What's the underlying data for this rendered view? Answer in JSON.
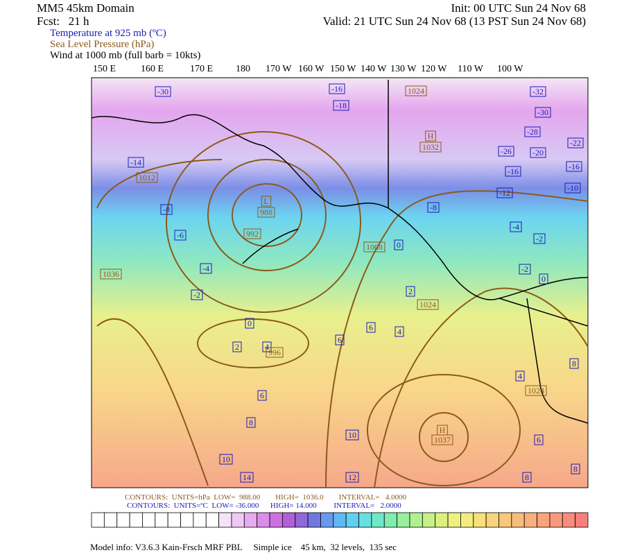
{
  "header": {
    "domain": "MM5 45km Domain",
    "forecast": "Fcst:   21 h",
    "init": "Init: 00 UTC Sun 24 Nov 68",
    "valid": "Valid: 21 UTC Sun 24 Nov 68 (13 PST Sun 24 Nov 68)",
    "fields": [
      "Temperature at 925 mb (ºC)",
      "Sea Level Pressure (hPa)",
      "Wind at 1000 mb (full barb = 10kts)"
    ]
  },
  "longitudes": [
    "150 E",
    "160 E",
    "170 E",
    "180",
    "170 W",
    "160 W",
    "150 W",
    "140 W",
    "130 W",
    "120 W",
    "110 W",
    "100 W"
  ],
  "temperature_labels": [
    "-30",
    "-32",
    "-30",
    "-28",
    "-22",
    "-26",
    "-20",
    "-14",
    "-16",
    "-16",
    "-12",
    "-10",
    "-8",
    "-8",
    "-6",
    "-4",
    "-2",
    "-4",
    "-2",
    "0",
    "-2",
    "2",
    "0",
    "0",
    "2",
    "4",
    "6",
    "4",
    "6",
    "6",
    "8",
    "10",
    "10",
    "14",
    "12",
    "4",
    "6",
    "8",
    "8",
    "8",
    "-16",
    "-18"
  ],
  "pressure_labels": [
    "1012",
    "988",
    "992",
    "1008",
    "1024",
    "H",
    "1032",
    "L",
    "996",
    "1036",
    "1024",
    "H",
    "1037",
    "1024"
  ],
  "contour_info": [
    "CONTOURS:  UNITS=hPa  LOW=  988.00        HIGH=  1036.0        INTERVAL=   4.0000",
    "CONTOURS:  UNITS=ºC  LOW= -36.000      HIGH= 14.000         INTERVAL=   2.0000"
  ],
  "footer": "Model info: V3.6.3 Kain-Frsch MRF PBL     Simple ice    45 km,  32 levels,  135 sec"
}
